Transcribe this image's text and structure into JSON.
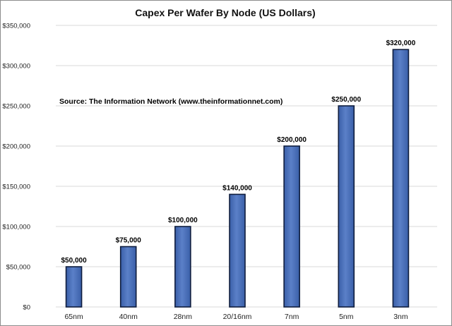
{
  "chart_data": {
    "type": "bar",
    "title": "Capex Per Wafer By Node (US Dollars)",
    "annotation": "Source: The Information Network (www.theinformationnet.com)",
    "categories": [
      "65nm",
      "40nm",
      "28nm",
      "20/16nm",
      "7nm",
      "5nm",
      "3nm"
    ],
    "values": [
      50000,
      75000,
      100000,
      140000,
      200000,
      250000,
      320000
    ],
    "data_labels": [
      "$50,000",
      "$75,000",
      "$100,000",
      "$140,000",
      "$200,000",
      "$250,000",
      "$320,000"
    ],
    "yticks": [
      0,
      50000,
      100000,
      150000,
      200000,
      250000,
      300000,
      350000
    ],
    "ytick_labels": [
      "$0",
      "$50,000",
      "$100,000",
      "$150,000",
      "$200,000",
      "$250,000",
      "$300,000",
      "$350,000"
    ],
    "ylim": [
      0,
      350000
    ],
    "grid": true,
    "legend": "none",
    "colors": {
      "bar_fill": "#3a5fa8",
      "bar_highlight": "#5b80c8",
      "bar_edge": "#0f1d3d"
    }
  }
}
